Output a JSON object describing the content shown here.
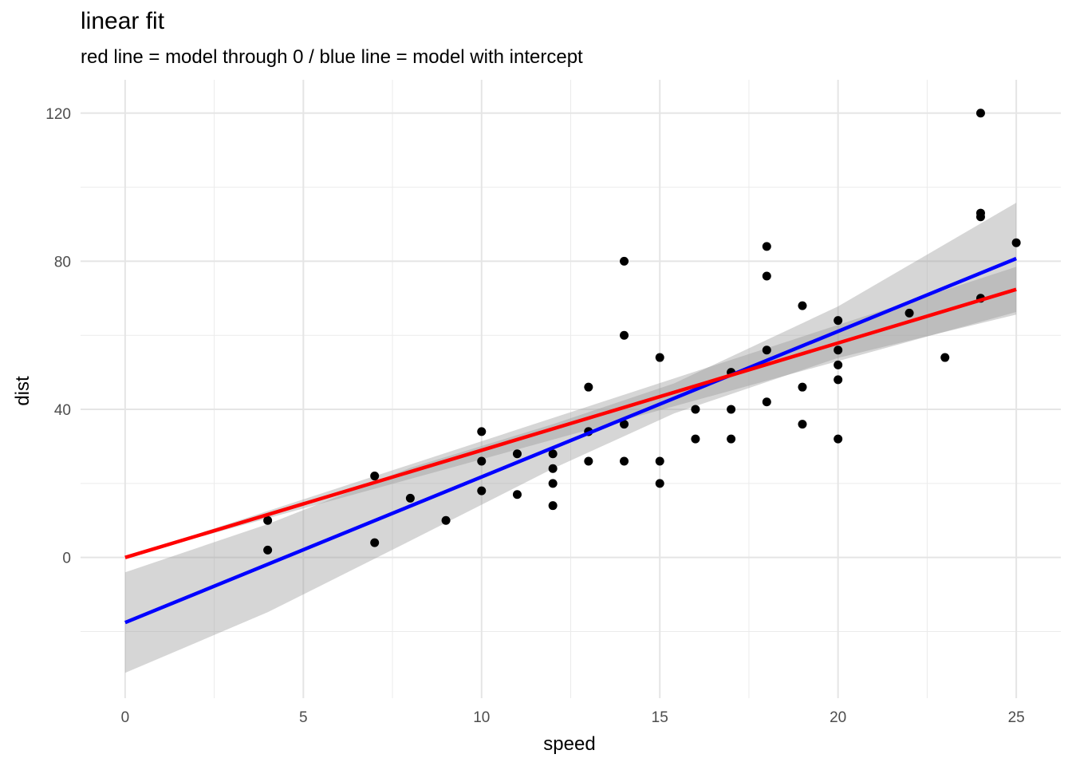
{
  "chart_data": {
    "type": "scatter",
    "title": "linear fit",
    "subtitle": "red line = model through 0 / blue line  = model with intercept",
    "xlabel": "speed",
    "ylabel": "dist",
    "xlim": [
      -1.25,
      26.25
    ],
    "ylim": [
      -38,
      129
    ],
    "xticks": [
      0,
      5,
      10,
      15,
      20,
      25
    ],
    "yticks": [
      0,
      40,
      80,
      120
    ],
    "grid": true,
    "points": [
      [
        4,
        2
      ],
      [
        4,
        10
      ],
      [
        7,
        4
      ],
      [
        7,
        22
      ],
      [
        8,
        16
      ],
      [
        9,
        10
      ],
      [
        10,
        18
      ],
      [
        10,
        26
      ],
      [
        10,
        34
      ],
      [
        11,
        17
      ],
      [
        11,
        28
      ],
      [
        12,
        14
      ],
      [
        12,
        20
      ],
      [
        12,
        24
      ],
      [
        12,
        28
      ],
      [
        13,
        26
      ],
      [
        13,
        34
      ],
      [
        13,
        34
      ],
      [
        13,
        46
      ],
      [
        14,
        26
      ],
      [
        14,
        36
      ],
      [
        14,
        60
      ],
      [
        14,
        80
      ],
      [
        15,
        20
      ],
      [
        15,
        26
      ],
      [
        15,
        54
      ],
      [
        16,
        32
      ],
      [
        16,
        40
      ],
      [
        17,
        32
      ],
      [
        17,
        40
      ],
      [
        17,
        50
      ],
      [
        18,
        42
      ],
      [
        18,
        56
      ],
      [
        18,
        76
      ],
      [
        18,
        84
      ],
      [
        19,
        36
      ],
      [
        19,
        46
      ],
      [
        19,
        68
      ],
      [
        20,
        32
      ],
      [
        20,
        48
      ],
      [
        20,
        52
      ],
      [
        20,
        56
      ],
      [
        20,
        64
      ],
      [
        22,
        66
      ],
      [
        23,
        54
      ],
      [
        24,
        70
      ],
      [
        24,
        92
      ],
      [
        24,
        93
      ],
      [
        24,
        120
      ],
      [
        25,
        85
      ]
    ],
    "lines": [
      {
        "color": "#0000ff",
        "x": [
          0,
          25
        ],
        "y": [
          -17.58,
          80.73
        ]
      },
      {
        "color": "#ff0000",
        "x": [
          0,
          25
        ],
        "y": [
          0,
          72.4
        ]
      }
    ],
    "ribbons": [
      {
        "x": [
          0,
          4,
          8,
          12,
          15.4,
          20,
          25
        ],
        "low": [
          -31.17,
          -14.8,
          4.5,
          24.0,
          38.9,
          53.9,
          65.6
        ],
        "high": [
          -3.99,
          9.0,
          24.2,
          36.0,
          47.0,
          67.8,
          95.8
        ]
      },
      {
        "x": [
          0,
          25
        ],
        "low": [
          0,
          66.3
        ],
        "high": [
          0,
          78.5
        ]
      }
    ]
  }
}
